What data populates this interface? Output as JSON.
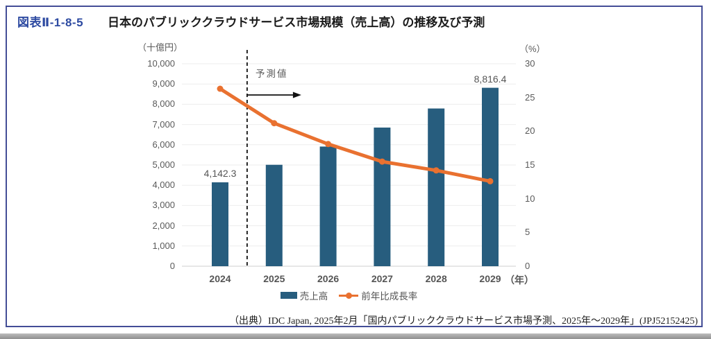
{
  "header": {
    "figure_number": "図表Ⅱ-1-8-5",
    "title": "日本のパブリッククラウドサービス市場規模（売上高）の推移及び予測"
  },
  "chart_data": {
    "type": "bar",
    "subtype": "bar+line combo, dual axis",
    "categories": [
      "2024",
      "2025",
      "2026",
      "2027",
      "2028",
      "2029"
    ],
    "series": [
      {
        "name": "売上高",
        "type": "bar",
        "axis": "left",
        "unit": "十億円",
        "values": [
          4142.3,
          5010,
          5910,
          6850,
          7790,
          8816.4
        ]
      },
      {
        "name": "前年比成長率",
        "type": "line",
        "axis": "right",
        "unit": "%",
        "values": [
          26.3,
          21.2,
          18.1,
          15.5,
          14.2,
          12.6
        ]
      }
    ],
    "data_labels": {
      "2024": "4,142.3",
      "2029": "8,816.4"
    },
    "left_axis": {
      "unit_label": "（十億円）",
      "min": 0,
      "max": 10000,
      "step": 1000
    },
    "right_axis": {
      "unit_label": "（%）",
      "min": 0,
      "max": 30,
      "step": 5
    },
    "x_axis_unit": "（年）",
    "forecast": {
      "label": "予測値",
      "boundary_after": "2024"
    },
    "colors": {
      "bar": "#275d7e",
      "line": "#e97130",
      "grid": "#ededed",
      "axis_line": "#cfcfcf"
    },
    "grid": true,
    "legend_position": "bottom"
  },
  "legend": {
    "bar_label": "売上高",
    "line_label": "前年比成長率"
  },
  "source": {
    "text": "（出典）IDC Japan, 2025年2月「国内パブリッククラウドサービス市場予測、2025年～2029年」(JPJ52152425)"
  }
}
